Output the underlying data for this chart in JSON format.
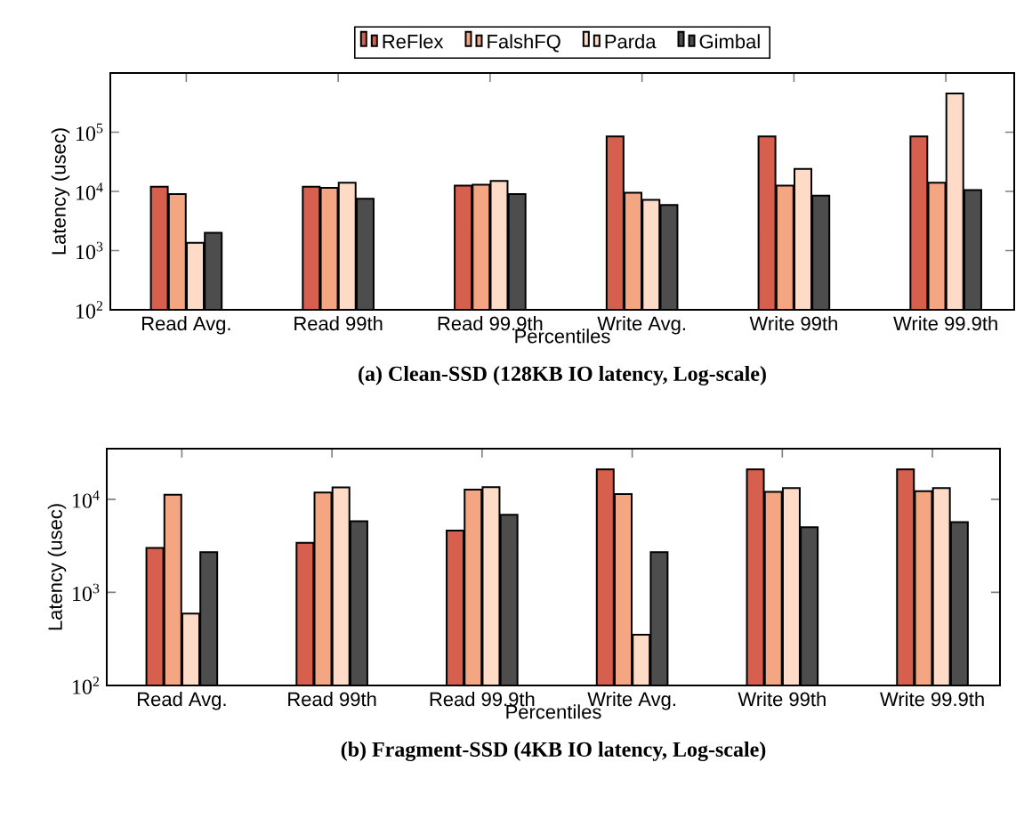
{
  "chart_data": [
    {
      "type": "bar",
      "title": "(a) Clean-SSD (128KB IO latency, Log-scale)",
      "xlabel": "Percentiles",
      "ylabel": "Latency (usec)",
      "log": "y",
      "legend": "top",
      "categories": [
        "Read Avg.",
        "Read 99th",
        "Read 99.9th",
        "Write Avg.",
        "Write 99th",
        "Write 99.9th"
      ],
      "ylim": [
        100,
        1000000
      ],
      "yticks": [
        {
          "value": 100,
          "label": "10$^{2}$"
        },
        {
          "value": 1000,
          "label": "10$^{3}$"
        },
        {
          "value": 10000,
          "label": "10$^{4}$"
        },
        {
          "value": 100000,
          "label": "10$^{5}$"
        }
      ],
      "series": [
        {
          "name": "ReFlex",
          "color": "#d6604d",
          "values": [
            12000,
            12000,
            12500,
            85000,
            85000,
            85000
          ]
        },
        {
          "name": "FalshFQ",
          "color": "#f4a582",
          "values": [
            9000,
            11500,
            13000,
            9500,
            12500,
            14000
          ]
        },
        {
          "name": "Parda",
          "color": "#fddbc7",
          "values": [
            1350,
            14000,
            15000,
            7200,
            24000,
            450000
          ]
        },
        {
          "name": "Gimbal",
          "color": "#4d4d4d",
          "values": [
            2000,
            7500,
            9000,
            5900,
            8500,
            10500
          ]
        }
      ]
    },
    {
      "type": "bar",
      "title": "(b) Fragment-SSD (4KB IO latency, Log-scale)",
      "xlabel": "Percentiles",
      "ylabel": "Latency (usec)",
      "log": "y",
      "categories": [
        "Read Avg.",
        "Read 99th",
        "Read 99.9th",
        "Write Avg.",
        "Write 99th",
        "Write 99.9th"
      ],
      "ylim": [
        100,
        35000
      ],
      "yticks": [
        {
          "value": 100,
          "label": "10$^{2}$"
        },
        {
          "value": 1000,
          "label": "10$^{3}$"
        },
        {
          "value": 10000,
          "label": "10$^{4}$"
        }
      ],
      "series": [
        {
          "color": "#d6604d",
          "values": [
            3000,
            3400,
            4600,
            21000,
            21000,
            21000
          ]
        },
        {
          "color": "#f4a582",
          "values": [
            11200,
            11800,
            12700,
            11400,
            12000,
            12200
          ]
        },
        {
          "color": "#fddbc7",
          "values": [
            590,
            13400,
            13500,
            350,
            13200,
            13200
          ]
        },
        {
          "color": "#4d4d4d",
          "values": [
            2700,
            5800,
            6800,
            2700,
            5000,
            5700
          ]
        }
      ]
    }
  ]
}
